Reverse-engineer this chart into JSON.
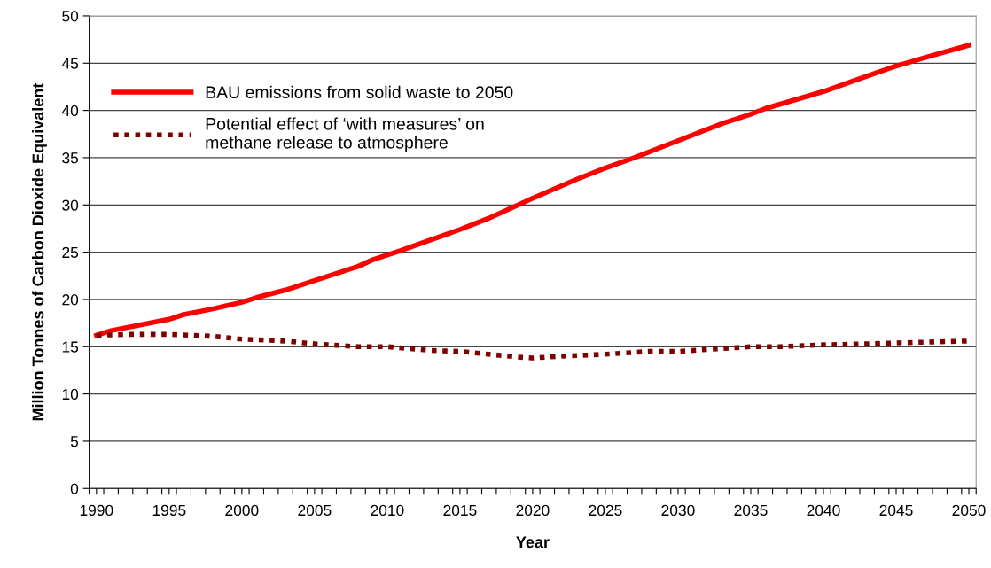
{
  "chart_data": {
    "type": "line",
    "xlabel": "Year",
    "ylabel": "Million Tonnes of Carbon Dioxide Equivalent",
    "series": [
      {
        "name": "BAU emissions from solid waste to 2050",
        "color": "#ff0000",
        "line_style": "solid",
        "x": [
          1990,
          1991,
          1993,
          1995,
          1996,
          1998,
          2000,
          2001,
          2003,
          2005,
          2008,
          2009,
          2011,
          2013,
          2015,
          2017,
          2020,
          2023,
          2025,
          2027,
          2030,
          2033,
          2035,
          2036,
          2040,
          2042,
          2045,
          2047,
          2050
        ],
        "values": [
          16.2,
          16.7,
          17.3,
          17.9,
          18.4,
          19.0,
          19.7,
          20.2,
          21.0,
          22.0,
          23.5,
          24.2,
          25.2,
          26.3,
          27.4,
          28.6,
          30.7,
          32.7,
          33.9,
          35.0,
          36.8,
          38.6,
          39.6,
          40.2,
          42.0,
          43.1,
          44.7,
          45.6,
          46.9
        ]
      },
      {
        "name": "Potential effect of ‘with measures’ on\nmethane release to atmosphere",
        "color": "#800000",
        "line_style": "dotted",
        "x": [
          1990,
          1992,
          1995,
          1998,
          2000,
          2003,
          2005,
          2008,
          2010,
          2013,
          2015,
          2017,
          2019,
          2020,
          2022,
          2025,
          2028,
          2030,
          2033,
          2035,
          2037,
          2040,
          2043,
          2045,
          2050
        ],
        "values": [
          16.2,
          16.3,
          16.3,
          16.1,
          15.8,
          15.6,
          15.3,
          15.0,
          15.0,
          14.6,
          14.5,
          14.2,
          13.9,
          13.8,
          14.0,
          14.2,
          14.5,
          14.5,
          14.8,
          15.0,
          15.0,
          15.2,
          15.3,
          15.4,
          15.6
        ]
      }
    ],
    "xlim": [
      1989.5,
      2050.5
    ],
    "xticks": [
      1990,
      1995,
      2000,
      2005,
      2010,
      2015,
      2020,
      2025,
      2030,
      2035,
      2040,
      2045,
      2050,
      {
        "value": 1989.5,
        "label": null
      },
      {
        "value": 1990.5,
        "label": null
      },
      {
        "value": 1991.5,
        "label": null
      },
      {
        "value": 1992.5,
        "label": null
      },
      {
        "value": 1993.5,
        "label": null
      },
      {
        "value": 1994.5,
        "label": null
      },
      {
        "value": 1995.5,
        "label": null
      },
      {
        "value": 1996.5,
        "label": null
      },
      {
        "value": 1997.5,
        "label": null
      },
      {
        "value": 1998.5,
        "label": null
      },
      {
        "value": 1999.5,
        "label": null
      },
      {
        "value": 2000.5,
        "label": null
      },
      {
        "value": 2001.5,
        "label": null
      },
      {
        "value": 2002.5,
        "label": null
      },
      {
        "value": 2003.5,
        "label": null
      },
      {
        "value": 2004.5,
        "label": null
      },
      {
        "value": 2005.5,
        "label": null
      },
      {
        "value": 2006.5,
        "label": null
      },
      {
        "value": 2007.5,
        "label": null
      },
      {
        "value": 2008.5,
        "label": null
      },
      {
        "value": 2009.5,
        "label": null
      },
      {
        "value": 2010.5,
        "label": null
      },
      {
        "value": 2011.5,
        "label": null
      },
      {
        "value": 2012.5,
        "label": null
      },
      {
        "value": 2013.5,
        "label": null
      },
      {
        "value": 2014.5,
        "label": null
      },
      {
        "value": 2015.5,
        "label": null
      },
      {
        "value": 2016.5,
        "label": null
      },
      {
        "value": 2017.5,
        "label": null
      },
      {
        "value": 2018.5,
        "label": null
      },
      {
        "value": 2019.5,
        "label": null
      },
      {
        "value": 2020.5,
        "label": null
      },
      {
        "value": 2021.5,
        "label": null
      },
      {
        "value": 2022.5,
        "label": null
      },
      {
        "value": 2023.5,
        "label": null
      },
      {
        "value": 2024.5,
        "label": null
      },
      {
        "value": 2025.5,
        "label": null
      },
      {
        "value": 2026.5,
        "label": null
      },
      {
        "value": 2027.5,
        "label": null
      },
      {
        "value": 2028.5,
        "label": null
      },
      {
        "value": 2029.5,
        "label": null
      },
      {
        "value": 2030.5,
        "label": null
      },
      {
        "value": 2031.5,
        "label": null
      },
      {
        "value": 2032.5,
        "label": null
      },
      {
        "value": 2033.5,
        "label": null
      },
      {
        "value": 2034.5,
        "label": null
      },
      {
        "value": 2035.5,
        "label": null
      },
      {
        "value": 2036.5,
        "label": null
      },
      {
        "value": 2037.5,
        "label": null
      },
      {
        "value": 2038.5,
        "label": null
      },
      {
        "value": 2039.5,
        "label": null
      },
      {
        "value": 2040.5,
        "label": null
      },
      {
        "value": 2041.5,
        "label": null
      },
      {
        "value": 2042.5,
        "label": null
      },
      {
        "value": 2043.5,
        "label": null
      },
      {
        "value": 2044.5,
        "label": null
      },
      {
        "value": 2045.5,
        "label": null
      },
      {
        "value": 2046.5,
        "label": null
      },
      {
        "value": 2047.5,
        "label": null
      },
      {
        "value": 2048.5,
        "label": null
      },
      {
        "value": 2049.5,
        "label": null
      },
      {
        "value": 2050.5,
        "label": null
      }
    ],
    "ylim": [
      0,
      50
    ],
    "yticks": [
      0,
      5,
      10,
      15,
      20,
      25,
      30,
      35,
      40,
      45,
      50
    ],
    "grid": "y",
    "legend": "top left",
    "marker": "none"
  }
}
